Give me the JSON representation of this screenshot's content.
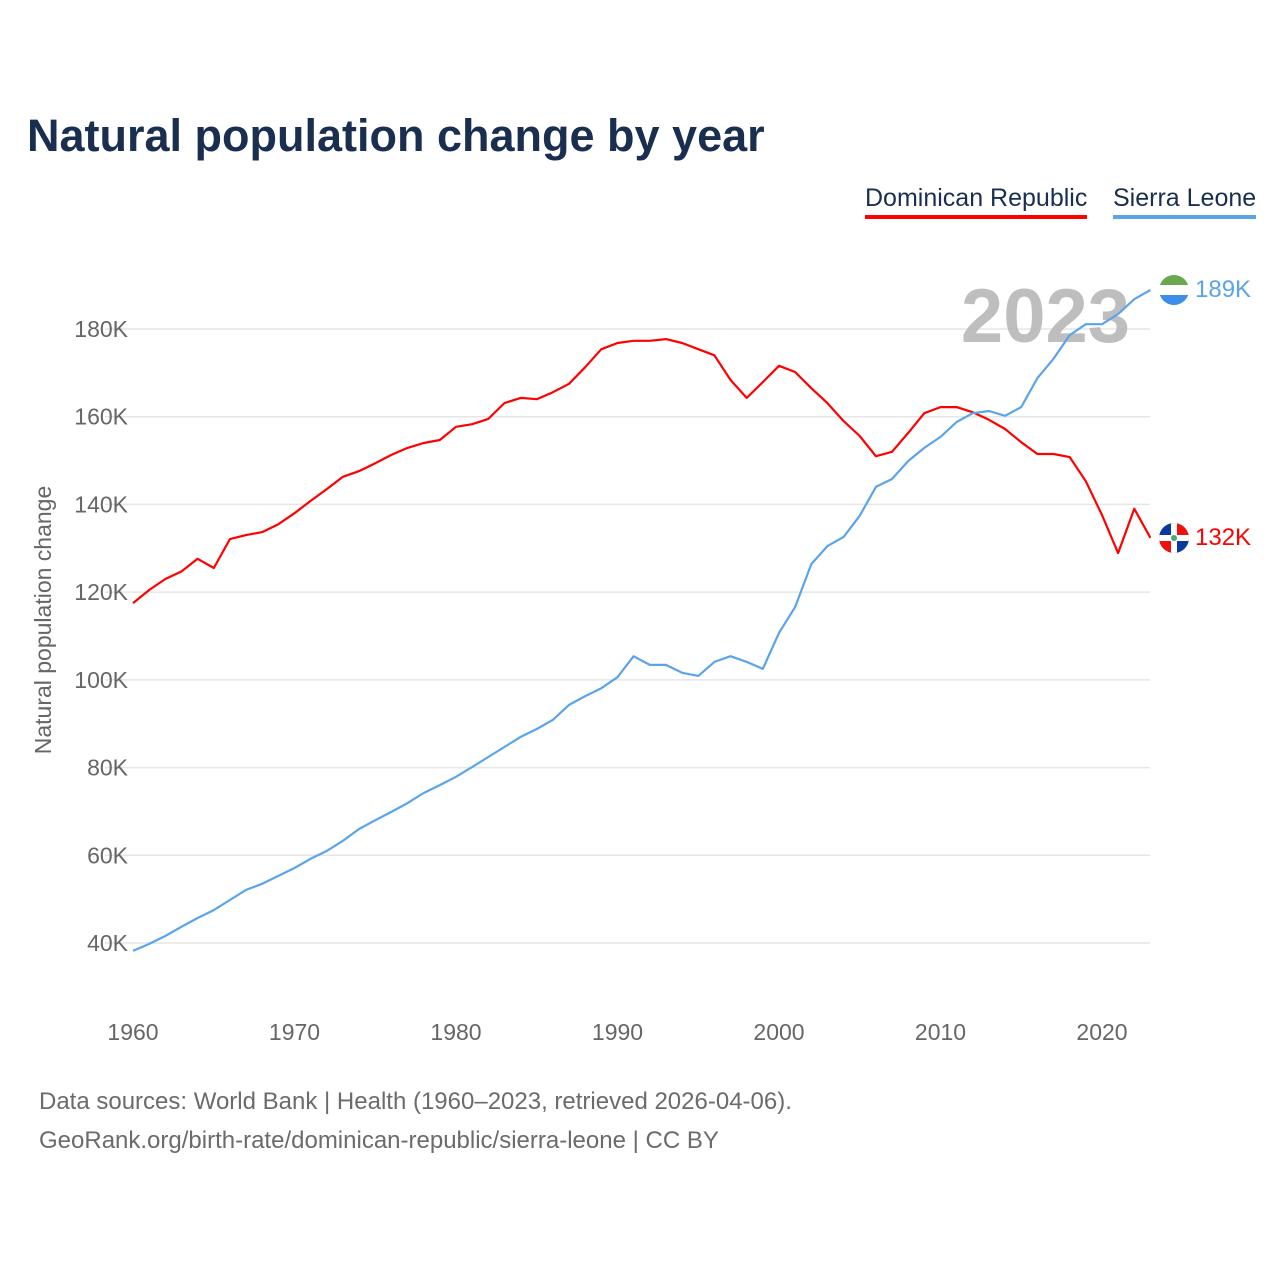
{
  "chart_data": {
    "type": "line",
    "title": "Natural population change by year",
    "xlabel": "",
    "ylabel": "Natural population change",
    "xlim": [
      1960,
      2023
    ],
    "ylim": [
      30000,
      190000
    ],
    "xticks": [
      1960,
      1970,
      1980,
      1990,
      2000,
      2010,
      2020
    ],
    "yticks": [
      40000,
      60000,
      80000,
      100000,
      120000,
      140000,
      160000,
      180000
    ],
    "ytick_labels": [
      "40K",
      "60K",
      "80K",
      "100K",
      "120K",
      "140K",
      "160K",
      "180K"
    ],
    "grid": true,
    "legend_position": "top-right",
    "year_label": "2023",
    "x": [
      1960,
      1961,
      1962,
      1963,
      1964,
      1965,
      1966,
      1967,
      1968,
      1969,
      1970,
      1971,
      1972,
      1973,
      1974,
      1975,
      1976,
      1977,
      1978,
      1979,
      1980,
      1981,
      1982,
      1983,
      1984,
      1985,
      1986,
      1987,
      1988,
      1989,
      1990,
      1991,
      1992,
      1993,
      1994,
      1995,
      1996,
      1997,
      1998,
      1999,
      2000,
      2001,
      2002,
      2003,
      2004,
      2005,
      2006,
      2007,
      2008,
      2009,
      2010,
      2011,
      2012,
      2013,
      2014,
      2015,
      2016,
      2017,
      2018,
      2019,
      2020,
      2021,
      2022,
      2023
    ],
    "series": [
      {
        "name": "Dominican Republic",
        "color": "#ff0000",
        "end_label": "132K",
        "values": [
          117500,
          120500,
          123000,
          124700,
          127600,
          125500,
          132100,
          133000,
          133700,
          135500,
          138000,
          140800,
          143500,
          146300,
          147600,
          149400,
          151300,
          152900,
          154000,
          154700,
          157700,
          158300,
          159500,
          163100,
          164300,
          164000,
          165600,
          167500,
          171300,
          175400,
          176800,
          177300,
          177300,
          177700,
          176800,
          175400,
          174000,
          168400,
          164300,
          167900,
          171600,
          170200,
          166500,
          163100,
          159000,
          155600,
          151000,
          152000,
          156300,
          160800,
          162200,
          162200,
          161000,
          159300,
          157200,
          154200,
          151500,
          151500,
          150800,
          145300,
          137600,
          128900,
          139000,
          132400
        ]
      },
      {
        "name": "Sierra Leone",
        "color": "#5ba4ea",
        "end_label": "189K",
        "values": [
          38200,
          39800,
          41600,
          43700,
          45700,
          47500,
          49800,
          52100,
          53500,
          55300,
          57100,
          59200,
          61000,
          63300,
          66000,
          68000,
          69900,
          71900,
          74200,
          76000,
          77900,
          80100,
          82400,
          84700,
          87000,
          88800,
          90900,
          94300,
          96300,
          98100,
          100600,
          105400,
          103400,
          103400,
          101600,
          100900,
          104100,
          105400,
          104100,
          102500,
          110700,
          116600,
          126400,
          130500,
          132600,
          137400,
          144000,
          145800,
          149900,
          152900,
          155400,
          158800,
          160800,
          161300,
          160200,
          162200,
          168800,
          173200,
          178600,
          181100,
          181100,
          183400,
          186800,
          188900
        ]
      }
    ]
  },
  "footer": {
    "line1": "Data sources: World Bank | Health (1960–2023, retrieved 2026-04-06).",
    "line2": "GeoRank.org/birth-rate/dominican-republic/sierra-leone | CC BY"
  }
}
